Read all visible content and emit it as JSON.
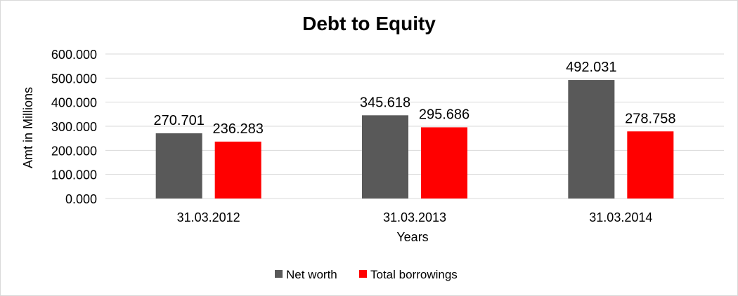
{
  "chart_data": {
    "type": "bar",
    "title": "Debt to Equity",
    "xlabel": "Years",
    "ylabel": "Amt in Millions",
    "categories": [
      "31.03.2012",
      "31.03.2013",
      "31.03.2014"
    ],
    "series": [
      {
        "name": "Net worth",
        "values": [
          270.701,
          345.618,
          492.031
        ],
        "labels": [
          "270.701",
          "345.618",
          "492.031"
        ],
        "color": "#595959"
      },
      {
        "name": "Total borrowings",
        "values": [
          236.283,
          295.686,
          278.758
        ],
        "labels": [
          "236.283",
          "295.686",
          "278.758"
        ],
        "color": "#ff0000"
      }
    ],
    "ylim": [
      0,
      600
    ],
    "yticks": [
      0,
      100,
      200,
      300,
      400,
      500,
      600
    ],
    "ytick_labels": [
      "0.000",
      "100.000",
      "200.000",
      "300.000",
      "400.000",
      "500.000",
      "600.000"
    ],
    "grid": true,
    "legend_position": "bottom"
  }
}
